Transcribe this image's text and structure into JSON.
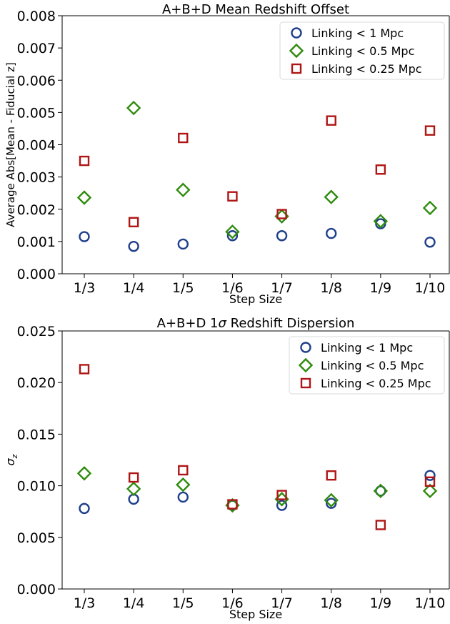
{
  "chart_data": [
    {
      "type": "scatter",
      "title": "A+B+D Mean Redshift Offset",
      "xlabel": "Step Size",
      "ylabel": "Average Abs[Mean - Fiducial z]",
      "categories": [
        "1/3",
        "1/4",
        "1/5",
        "1/6",
        "1/7",
        "1/8",
        "1/9",
        "1/10"
      ],
      "ylim": [
        0,
        0.008
      ],
      "yticks": [
        "0.000",
        "0.001",
        "0.002",
        "0.003",
        "0.004",
        "0.005",
        "0.006",
        "0.007",
        "0.008"
      ],
      "legend_position": "top-right",
      "grid": false,
      "series": [
        {
          "name": "Linking < 1 Mpc",
          "marker": "circle",
          "color": "#1f3f8a",
          "values": [
            0.00115,
            0.00085,
            0.00092,
            0.00118,
            0.00118,
            0.00125,
            0.00155,
            0.00098
          ]
        },
        {
          "name": "Linking < 0.5 Mpc",
          "marker": "diamond",
          "color": "#2e8b0e",
          "values": [
            0.00236,
            0.00514,
            0.0026,
            0.0013,
            0.00178,
            0.00238,
            0.00163,
            0.00204
          ]
        },
        {
          "name": "Linking < 0.25 Mpc",
          "marker": "square",
          "color": "#b01515",
          "values": [
            0.0035,
            0.0016,
            0.00421,
            0.0024,
            0.00185,
            0.00475,
            0.00323,
            0.00444
          ]
        }
      ]
    },
    {
      "type": "scatter",
      "title": "A+B+D 1σ Redshift Dispersion",
      "title_parts": {
        "prefix": "A+B+D 1",
        "symbol": "σ",
        "suffix": " Redshift Dispersion"
      },
      "xlabel": "Step Size",
      "ylabel": "σ",
      "ylabel_sub": "z",
      "categories": [
        "1/3",
        "1/4",
        "1/5",
        "1/6",
        "1/7",
        "1/8",
        "1/9",
        "1/10"
      ],
      "ylim": [
        0,
        0.025
      ],
      "yticks": [
        "0.000",
        "0.005",
        "0.010",
        "0.015",
        "0.020",
        "0.025"
      ],
      "legend_position": "top-right",
      "grid": false,
      "series": [
        {
          "name": "Linking < 1 Mpc",
          "marker": "circle",
          "color": "#1f3f8a",
          "values": [
            0.0078,
            0.0087,
            0.0089,
            0.0081,
            0.0081,
            0.0083,
            0.0095,
            0.011
          ]
        },
        {
          "name": "Linking < 0.5 Mpc",
          "marker": "diamond",
          "color": "#2e8b0e",
          "values": [
            0.0112,
            0.0097,
            0.0101,
            0.0081,
            0.0087,
            0.0086,
            0.0095,
            0.0095
          ]
        },
        {
          "name": "Linking < 0.25 Mpc",
          "marker": "square",
          "color": "#b01515",
          "values": [
            0.0213,
            0.0108,
            0.0115,
            0.0082,
            0.0091,
            0.011,
            0.0062,
            0.0104
          ]
        }
      ]
    }
  ]
}
